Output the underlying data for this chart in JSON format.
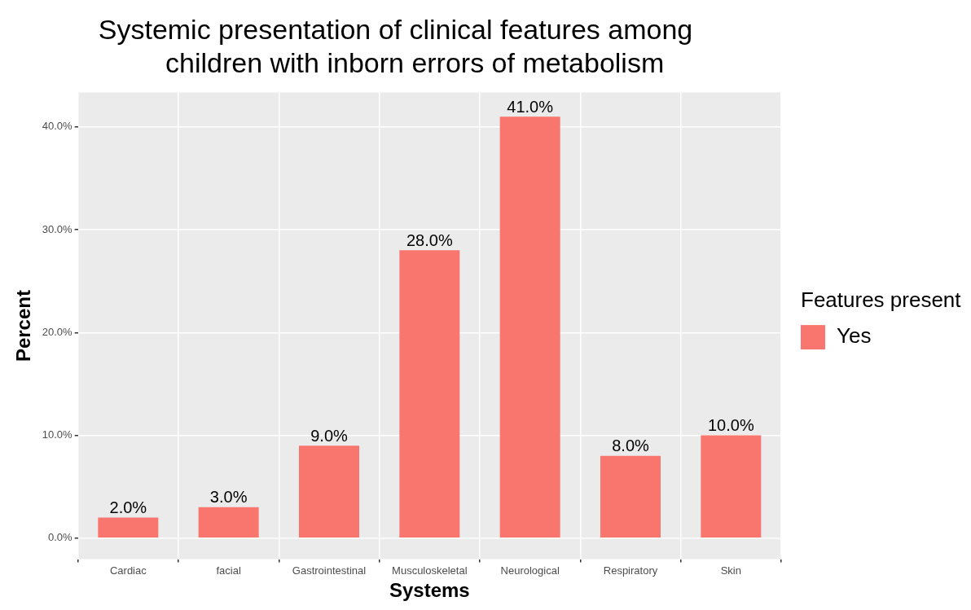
{
  "chart_data": {
    "type": "bar",
    "title": "Systemic presentation of clinical features among\n     children with inborn errors of metabolism",
    "xlabel": "Systems",
    "ylabel": "Percent",
    "legend_title": "Features present",
    "legend": "right",
    "grid": true,
    "categories": [
      "Cardiac",
      "facial",
      "Gastrointestinal",
      "Musculoskeletal",
      "Neurological",
      "Respiratory",
      "Skin"
    ],
    "series": [
      {
        "name": "Yes",
        "color": "#f8766d",
        "values": [
          2,
          3,
          9,
          28,
          41,
          8,
          10
        ],
        "value_labels": [
          "2.0%",
          "3.0%",
          "9.0%",
          "28.0%",
          "41.0%",
          "8.0%",
          "10.0%"
        ]
      }
    ],
    "ylim": [
      -2.05,
      43.35
    ],
    "yticks": [
      {
        "value": 0,
        "label": "0.0%"
      },
      {
        "value": 10,
        "label": "10.0%"
      },
      {
        "value": 20,
        "label": "20.0%"
      },
      {
        "value": 30,
        "label": "30.0%"
      },
      {
        "value": 40,
        "label": "40.0%"
      }
    ]
  }
}
